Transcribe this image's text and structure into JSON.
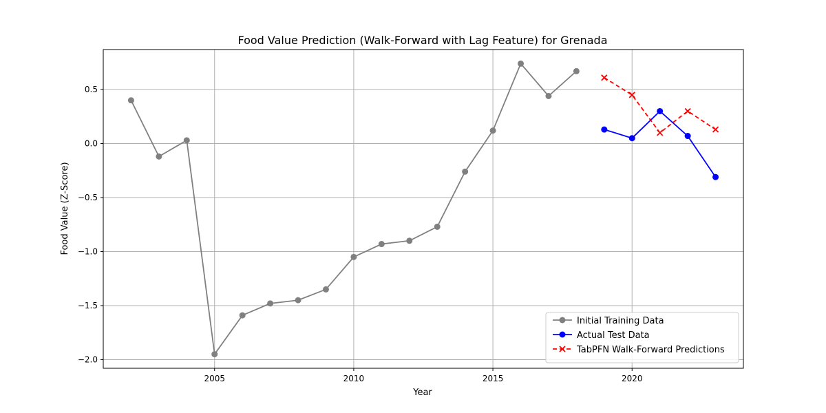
{
  "chart_data": {
    "type": "line",
    "title": "Food Value Prediction (Walk-Forward with Lag Feature) for Grenada",
    "xlabel": "Year",
    "ylabel": "Food Value (Z-Score)",
    "xlim": [
      2001,
      2024
    ],
    "ylim": [
      -2.08,
      0.87
    ],
    "x_ticks": [
      2005,
      2010,
      2015,
      2020
    ],
    "x_tick_labels": [
      "2005",
      "2010",
      "2015",
      "2020"
    ],
    "y_ticks": [
      0.5,
      0.0,
      -0.5,
      -1.0,
      -1.5,
      -2.0
    ],
    "y_tick_labels": [
      "0.5",
      "0.0",
      "−0.5",
      "−1.0",
      "−1.5",
      "−2.0"
    ],
    "grid": true,
    "legend_position": "lower-right",
    "series": [
      {
        "name": "Initial Training Data",
        "color": "#808080",
        "linestyle": "solid",
        "marker": "circle",
        "x": [
          2002,
          2003,
          2004,
          2005,
          2006,
          2007,
          2008,
          2009,
          2010,
          2011,
          2012,
          2013,
          2014,
          2015,
          2016,
          2017,
          2018
        ],
        "y": [
          0.4,
          -0.12,
          0.03,
          -1.95,
          -1.59,
          -1.48,
          -1.45,
          -1.35,
          -1.05,
          -0.93,
          -0.9,
          -0.77,
          -0.26,
          0.12,
          0.74,
          0.44,
          0.67
        ]
      },
      {
        "name": "Actual Test Data",
        "color": "#0000ff",
        "linestyle": "solid",
        "marker": "circle",
        "x": [
          2019,
          2020,
          2021,
          2022,
          2023
        ],
        "y": [
          0.13,
          0.05,
          0.3,
          0.07,
          -0.31
        ]
      },
      {
        "name": "TabPFN Walk-Forward Predictions",
        "color": "#ff0000",
        "linestyle": "dashed",
        "marker": "x",
        "x": [
          2019,
          2020,
          2021,
          2022,
          2023
        ],
        "y": [
          0.61,
          0.45,
          0.1,
          0.3,
          0.13
        ]
      }
    ]
  }
}
